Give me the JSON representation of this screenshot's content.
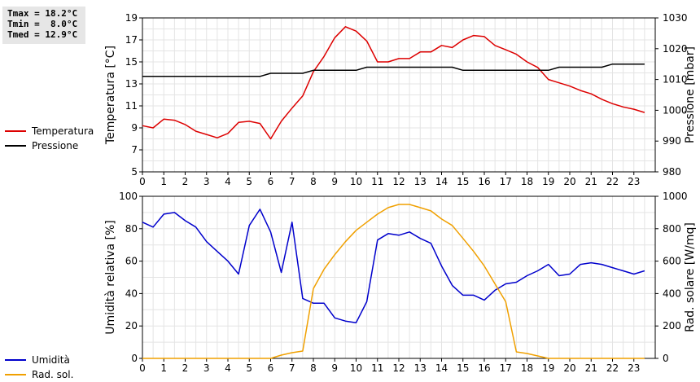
{
  "stats": {
    "tmax": "Tmax = 18.2°C",
    "tmin": "Tmin =  8.0°C",
    "tmed": "Tmed = 12.9°C"
  },
  "legend_top": [
    {
      "label": "Temperatura",
      "color": "#dd0000"
    },
    {
      "label": "Pressione",
      "color": "#000000"
    }
  ],
  "legend_bottom": [
    {
      "label": "Umidità",
      "color": "#0000cc"
    },
    {
      "label": "Rad. sol.",
      "color": "#f0a000"
    }
  ],
  "chart_data": [
    {
      "type": "line",
      "xlim": [
        0,
        24
      ],
      "xticks": [
        0,
        1,
        2,
        3,
        4,
        5,
        6,
        7,
        8,
        9,
        10,
        11,
        12,
        13,
        14,
        15,
        16,
        17,
        18,
        19,
        20,
        21,
        22,
        23
      ],
      "ylabel": "Temperatura [°C]",
      "ylim": [
        5,
        19
      ],
      "yticks": [
        5,
        7,
        9,
        11,
        13,
        15,
        17,
        19
      ],
      "y2label": "Pressione [mbar]",
      "y2lim": [
        980,
        1030
      ],
      "y2ticks": [
        980,
        990,
        1000,
        1010,
        1020,
        1030
      ],
      "grid": true,
      "series": [
        {
          "name": "Temperatura",
          "color": "#dd0000",
          "axis": "left",
          "x": [
            0,
            0.5,
            1,
            1.5,
            2,
            2.5,
            3,
            3.5,
            4,
            4.5,
            5,
            5.5,
            6,
            6.5,
            7,
            7.5,
            8,
            8.5,
            9,
            9.5,
            10,
            10.5,
            11,
            11.5,
            12,
            12.5,
            13,
            13.5,
            14,
            14.5,
            15,
            15.5,
            16,
            16.5,
            17,
            17.5,
            18,
            18.5,
            19,
            19.5,
            20,
            20.5,
            21,
            21.5,
            22,
            22.5,
            23,
            23.5
          ],
          "y": [
            9.2,
            9.0,
            9.8,
            9.7,
            9.3,
            8.7,
            8.4,
            8.1,
            8.5,
            9.5,
            9.6,
            9.4,
            8.0,
            9.6,
            10.8,
            11.9,
            14.1,
            15.5,
            17.2,
            18.2,
            17.8,
            16.9,
            15.0,
            15.0,
            15.3,
            15.3,
            15.9,
            15.9,
            16.5,
            16.3,
            17.0,
            17.4,
            17.3,
            16.5,
            16.1,
            15.7,
            15.0,
            14.5,
            13.4,
            13.1,
            12.8,
            12.4,
            12.1,
            11.6,
            11.2,
            10.9,
            10.7,
            10.4
          ]
        },
        {
          "name": "Pressione",
          "color": "#000000",
          "axis": "right",
          "x": [
            0,
            0.5,
            1,
            1.5,
            2,
            2.5,
            3,
            3.5,
            4,
            4.5,
            5,
            5.5,
            6,
            6.5,
            7,
            7.5,
            8,
            8.5,
            9,
            9.5,
            10,
            10.5,
            11,
            11.5,
            12,
            12.5,
            13,
            13.5,
            14,
            14.5,
            15,
            15.5,
            16,
            16.5,
            17,
            17.5,
            18,
            18.5,
            19,
            19.5,
            20,
            20.5,
            21,
            21.5,
            22,
            22.5,
            23,
            23.5
          ],
          "y": [
            1011,
            1011,
            1011,
            1011,
            1011,
            1011,
            1011,
            1011,
            1011,
            1011,
            1011,
            1011,
            1012,
            1012,
            1012,
            1012,
            1013,
            1013,
            1013,
            1013,
            1013,
            1014,
            1014,
            1014,
            1014,
            1014,
            1014,
            1014,
            1014,
            1014,
            1013,
            1013,
            1013,
            1013,
            1013,
            1013,
            1013,
            1013,
            1013,
            1014,
            1014,
            1014,
            1014,
            1014,
            1015,
            1015,
            1015,
            1015
          ]
        }
      ]
    },
    {
      "type": "line",
      "xlim": [
        0,
        24
      ],
      "xticks": [
        0,
        1,
        2,
        3,
        4,
        5,
        6,
        7,
        8,
        9,
        10,
        11,
        12,
        13,
        14,
        15,
        16,
        17,
        18,
        19,
        20,
        21,
        22,
        23
      ],
      "ylabel": "Umidità relativa [%]",
      "ylim": [
        0,
        100
      ],
      "yticks": [
        0,
        20,
        40,
        60,
        80,
        100
      ],
      "y2label": "Rad. solare [W/mq]",
      "y2lim": [
        0,
        1000
      ],
      "y2ticks": [
        0,
        200,
        400,
        600,
        800,
        1000
      ],
      "grid": true,
      "series": [
        {
          "name": "Umidità",
          "color": "#0000cc",
          "axis": "left",
          "x": [
            0,
            0.5,
            1,
            1.5,
            2,
            2.5,
            3,
            3.5,
            4,
            4.5,
            5,
            5.5,
            6,
            6.5,
            7,
            7.5,
            8,
            8.5,
            9,
            9.5,
            10,
            10.5,
            11,
            11.5,
            12,
            12.5,
            13,
            13.5,
            14,
            14.5,
            15,
            15.5,
            16,
            16.5,
            17,
            17.5,
            18,
            18.5,
            19,
            19.5,
            20,
            20.5,
            21,
            21.5,
            22,
            22.5,
            23,
            23.5
          ],
          "y": [
            84,
            81,
            89,
            90,
            85,
            81,
            72,
            66,
            60,
            52,
            82,
            92,
            78,
            53,
            84,
            37,
            34,
            34,
            25,
            23,
            22,
            35,
            73,
            77,
            76,
            78,
            74,
            71,
            57,
            45,
            39,
            39,
            36,
            42,
            46,
            47,
            51,
            54,
            58,
            51,
            52,
            58,
            59,
            58,
            56,
            54,
            52,
            54
          ]
        },
        {
          "name": "Rad. sol.",
          "color": "#f0a000",
          "axis": "right",
          "x": [
            0,
            0.5,
            1,
            1.5,
            2,
            2.5,
            3,
            3.5,
            4,
            4.5,
            5,
            5.5,
            6,
            6.5,
            7,
            7.5,
            8,
            8.5,
            9,
            9.5,
            10,
            10.5,
            11,
            11.5,
            12,
            12.5,
            13,
            13.5,
            14,
            14.5,
            15,
            15.5,
            16,
            16.5,
            17,
            17.5,
            18,
            18.5,
            19,
            19.5,
            20,
            20.5,
            21,
            21.5,
            22,
            22.5,
            23,
            23.5
          ],
          "y": [
            0,
            0,
            0,
            0,
            0,
            0,
            0,
            0,
            0,
            0,
            0,
            0,
            0,
            20,
            35,
            45,
            430,
            550,
            640,
            720,
            790,
            840,
            890,
            930,
            950,
            950,
            930,
            910,
            860,
            820,
            740,
            660,
            570,
            460,
            350,
            40,
            30,
            15,
            0,
            0,
            0,
            0,
            0,
            0,
            0,
            0,
            0,
            0
          ]
        }
      ]
    }
  ]
}
